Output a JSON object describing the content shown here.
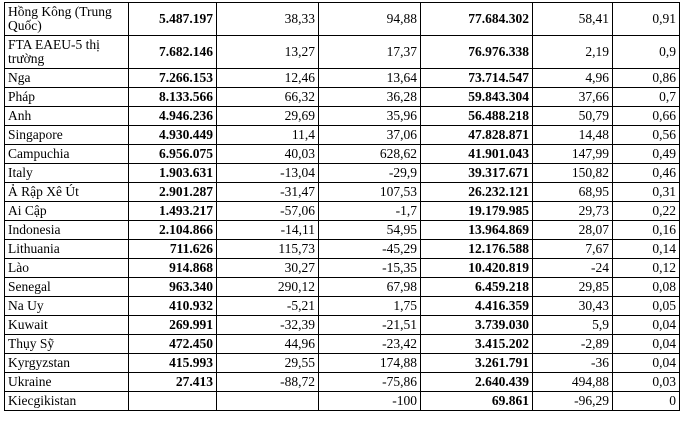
{
  "table": {
    "rows": [
      {
        "name": "Hồng Kông (Trung Quốc)",
        "c1": "5.487.197",
        "c2": "38,33",
        "c3": "94,88",
        "c4": "77.684.302",
        "c5": "58,41",
        "c6": "0,91"
      },
      {
        "name": "FTA EAEU-5 thị trường",
        "c1": "7.682.146",
        "c2": "13,27",
        "c3": "17,37",
        "c4": "76.976.338",
        "c5": "2,19",
        "c6": "0,9"
      },
      {
        "name": "Nga",
        "c1": "7.266.153",
        "c2": "12,46",
        "c3": "13,64",
        "c4": "73.714.547",
        "c5": "4,96",
        "c6": "0,86"
      },
      {
        "name": "Pháp",
        "c1": "8.133.566",
        "c2": "66,32",
        "c3": "36,28",
        "c4": "59.843.304",
        "c5": "37,66",
        "c6": "0,7"
      },
      {
        "name": "Anh",
        "c1": "4.946.236",
        "c2": "29,69",
        "c3": "35,96",
        "c4": "56.488.218",
        "c5": "50,79",
        "c6": "0,66"
      },
      {
        "name": "Singapore",
        "c1": "4.930.449",
        "c2": "11,4",
        "c3": "37,06",
        "c4": "47.828.871",
        "c5": "14,48",
        "c6": "0,56"
      },
      {
        "name": "Campuchia",
        "c1": "6.956.075",
        "c2": "40,03",
        "c3": "628,62",
        "c4": "41.901.043",
        "c5": "147,99",
        "c6": "0,49"
      },
      {
        "name": "Italy",
        "c1": "1.903.631",
        "c2": "-13,04",
        "c3": "-29,9",
        "c4": "39.317.671",
        "c5": "150,82",
        "c6": "0,46"
      },
      {
        "name": "Ả Rập Xê Út",
        "c1": "2.901.287",
        "c2": "-31,47",
        "c3": "107,53",
        "c4": "26.232.121",
        "c5": "68,95",
        "c6": "0,31"
      },
      {
        "name": "Ai Cập",
        "c1": "1.493.217",
        "c2": "-57,06",
        "c3": "-1,7",
        "c4": "19.179.985",
        "c5": "29,73",
        "c6": "0,22"
      },
      {
        "name": "Indonesia",
        "c1": "2.104.866",
        "c2": "-14,11",
        "c3": "54,95",
        "c4": "13.964.869",
        "c5": "28,07",
        "c6": "0,16"
      },
      {
        "name": "Lithuania",
        "c1": "711.626",
        "c2": "115,73",
        "c3": "-45,29",
        "c4": "12.176.588",
        "c5": "7,67",
        "c6": "0,14"
      },
      {
        "name": "Lào",
        "c1": "914.868",
        "c2": "30,27",
        "c3": "-15,35",
        "c4": "10.420.819",
        "c5": "-24",
        "c6": "0,12"
      },
      {
        "name": "Senegal",
        "c1": "963.340",
        "c2": "290,12",
        "c3": "67,98",
        "c4": "6.459.218",
        "c5": "29,85",
        "c6": "0,08"
      },
      {
        "name": "Na Uy",
        "c1": "410.932",
        "c2": "-5,21",
        "c3": "1,75",
        "c4": "4.416.359",
        "c5": "30,43",
        "c6": "0,05"
      },
      {
        "name": "Kuwait",
        "c1": "269.991",
        "c2": "-32,39",
        "c3": "-21,51",
        "c4": "3.739.030",
        "c5": "5,9",
        "c6": "0,04"
      },
      {
        "name": "Thụy Sỹ",
        "c1": "472.450",
        "c2": "44,96",
        "c3": "-23,42",
        "c4": "3.415.202",
        "c5": "-2,89",
        "c6": "0,04"
      },
      {
        "name": "Kyrgyzstan",
        "c1": "415.993",
        "c2": "29,55",
        "c3": "174,88",
        "c4": "3.261.791",
        "c5": "-36",
        "c6": "0,04"
      },
      {
        "name": "Ukraine",
        "c1": "27.413",
        "c2": "-88,72",
        "c3": "-75,86",
        "c4": "2.640.439",
        "c5": "494,88",
        "c6": "0,03"
      },
      {
        "name": "Kiecgikistan",
        "c1": "",
        "c2": "",
        "c3": "-100",
        "c4": "69.861",
        "c5": "-96,29",
        "c6": "0"
      }
    ]
  }
}
